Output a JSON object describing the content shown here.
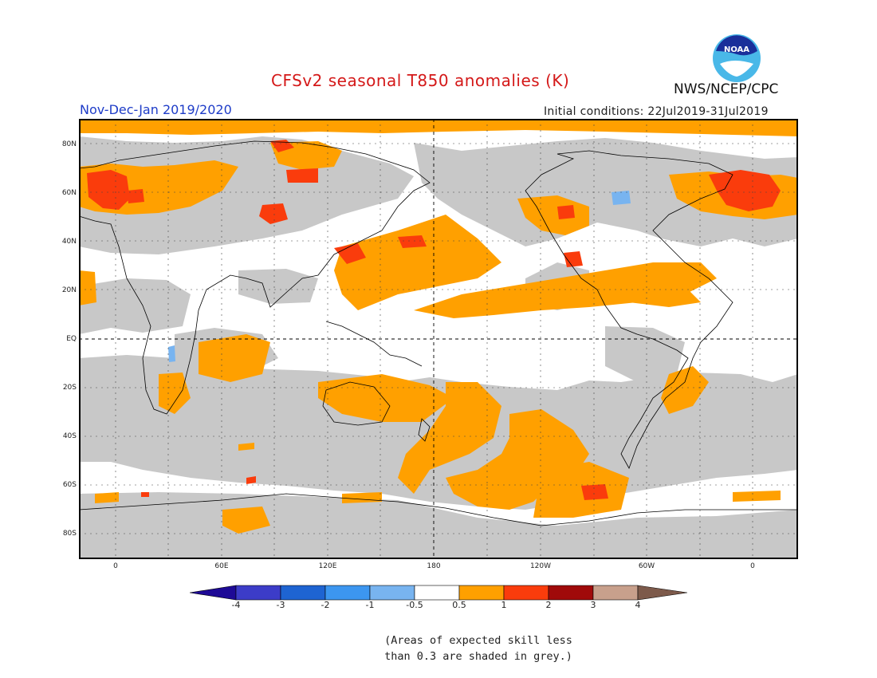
{
  "header": {
    "title": "CFSv2 seasonal T850 anomalies (K)",
    "period": "Nov-Dec-Jan 2019/2020",
    "initial_conditions": "Initial conditions: 22Jul2019-31Jul2019",
    "agency": "NWS/NCEP/CPC",
    "logo_text": "NOAA"
  },
  "map": {
    "latitude_labels": [
      "80N",
      "60N",
      "40N",
      "20N",
      "EQ",
      "20S",
      "40S",
      "60S",
      "80S"
    ],
    "longitude_labels": [
      "0",
      "60E",
      "120E",
      "180",
      "120W",
      "60W",
      "0"
    ],
    "colors": {
      "grey_low_skill": "#c8c8c8",
      "anom_0_5_to_1": "#ffa000",
      "anom_1_to_2": "#fa3c0c",
      "anom_neg_0_5_to_neg_1": "#78b4f0",
      "coastline": "#000000",
      "background": "#ffffff"
    }
  },
  "colorbar": {
    "labels": [
      "-4",
      "-3",
      "-2",
      "-1",
      "-0.5",
      "0.5",
      "1",
      "2",
      "3",
      "4"
    ],
    "colors": [
      "#1e0a96",
      "#3c3cc8",
      "#1e64d2",
      "#3c96f0",
      "#78b4f0",
      "#ffffff",
      "#ffa000",
      "#fa3c0c",
      "#a00a0a",
      "#c8a08c",
      "#7d5a4b"
    ]
  },
  "footnote": {
    "line1": "(Areas of expected skill less",
    "line2": "than 0.3 are shaded in grey.)"
  }
}
